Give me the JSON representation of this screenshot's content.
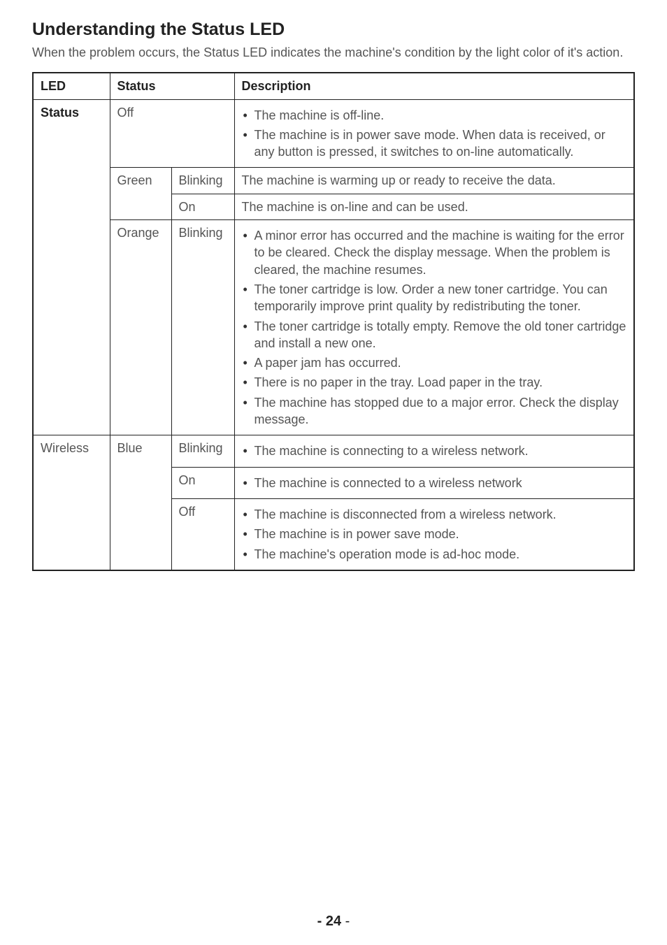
{
  "title": "Understanding the Status LED",
  "intro": "When the problem occurs, the Status LED indicates the machine's condition by the light color of it's action.",
  "table": {
    "header": {
      "led": "LED",
      "status": "Status",
      "description": "Description"
    },
    "rows": {
      "status_led_label": "Status",
      "off_label": "Off",
      "off_items": [
        "The machine is off-line.",
        "The machine is in power save mode. When data is received, or any button is pressed, it switches to on-line automatically."
      ],
      "green_label": "Green",
      "green_blinking_label": "Blinking",
      "green_blinking_desc": "The machine is warming up or ready to receive the data.",
      "green_on_label": "On",
      "green_on_desc": "The machine is on-line and can be used.",
      "orange_label": "Orange",
      "orange_blinking_label": "Blinking",
      "orange_items": [
        "A minor error has occurred and the machine is waiting for the error to be cleared. Check the display message. When the problem is cleared, the machine resumes.",
        "The toner cartridge is low. Order a new toner cartridge. You can temporarily improve print quality by redistributing the toner.",
        "The toner cartridge is totally empty. Remove the old toner cartridge and install a new one.",
        "A paper jam has occurred.",
        "There is no paper in the tray. Load paper in the tray.",
        "The machine has stopped due to a major error. Check the display message."
      ],
      "wireless_led_label": "Wireless",
      "blue_label": "Blue",
      "blue_blinking_label": "Blinking",
      "blue_blinking_items": [
        "The machine is connecting to a wireless network."
      ],
      "blue_on_label": "On",
      "blue_on_items": [
        "The machine is connected to a wireless network"
      ],
      "blue_off_label": "Off",
      "blue_off_items": [
        "The machine is disconnected from a wireless network.",
        "The machine is in power save mode.",
        "The machine's operation mode is ad-hoc mode."
      ]
    }
  },
  "footer": {
    "page": "24"
  }
}
